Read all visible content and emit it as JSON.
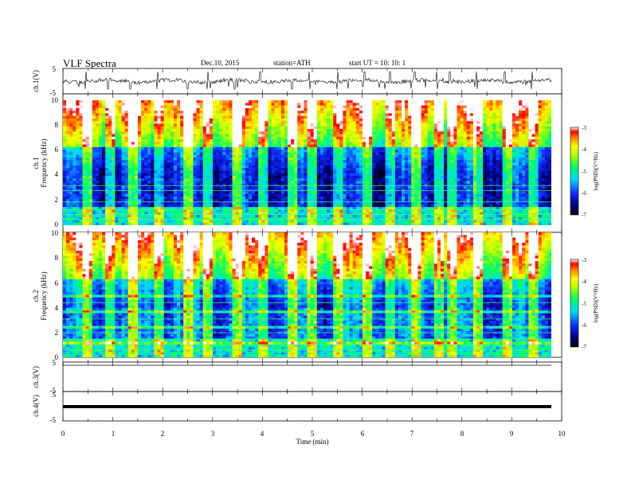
{
  "header": {
    "title": "VLF  Spectra",
    "date": "Dec.10, 2015",
    "station": "station=ATH",
    "start": "start  UT  =    10: 10: 1"
  },
  "chart_data": [
    {
      "type": "line",
      "panel": "ch1-waveform",
      "ylabel": "ch.1(V)",
      "ylim": [
        -5,
        5
      ],
      "yticks": [
        "5",
        "-5"
      ],
      "baseline": 0,
      "spike_times_min": [
        0.45,
        0.9,
        1.35,
        1.9,
        2.5,
        2.9,
        3.45,
        3.95,
        4.6,
        4.95,
        5.5,
        6.05,
        6.55,
        7.05,
        7.5,
        7.75,
        8.3,
        8.85,
        9.4
      ]
    },
    {
      "type": "heatmap",
      "panel": "ch1-spectrogram",
      "ylabel": "Frequency  (kHz)",
      "channel_label": "ch.1",
      "ylim": [
        0,
        10
      ],
      "yticks": [
        "10",
        "8",
        "6",
        "4",
        "2",
        "0"
      ],
      "colorbar": {
        "label": "log(PSD)(V²/Hz)",
        "range": [
          -7,
          -3
        ],
        "ticks": [
          "-3",
          "-4",
          "-5",
          "-6",
          "-7"
        ]
      }
    },
    {
      "type": "heatmap",
      "panel": "ch2-spectrogram",
      "ylabel": "Frequency  (kHz)",
      "channel_label": "ch.2",
      "ylim": [
        0,
        10
      ],
      "yticks": [
        "10",
        "8",
        "6",
        "4",
        "2",
        "0"
      ],
      "colorbar": {
        "label": "log(PSD)(V²/Hz)",
        "range": [
          -7,
          -3
        ],
        "ticks": [
          "-3",
          "-4",
          "-5",
          "-6",
          "-7"
        ]
      }
    },
    {
      "type": "line",
      "panel": "ch3-waveform",
      "ylabel": "ch.3(V)",
      "ylim": [
        -5,
        5
      ],
      "yticks": [
        "5",
        "-5"
      ]
    },
    {
      "type": "line",
      "panel": "ch4-waveform",
      "ylabel": "ch.4(V)",
      "ylim": [
        -5,
        5
      ],
      "yticks": [
        "5",
        "-5"
      ]
    }
  ],
  "xaxis": {
    "label": "Time  (min)",
    "xlim": [
      0,
      10
    ],
    "ticks": [
      "0",
      "1",
      "2",
      "3",
      "4",
      "5",
      "6",
      "7",
      "8",
      "9",
      "10"
    ]
  }
}
